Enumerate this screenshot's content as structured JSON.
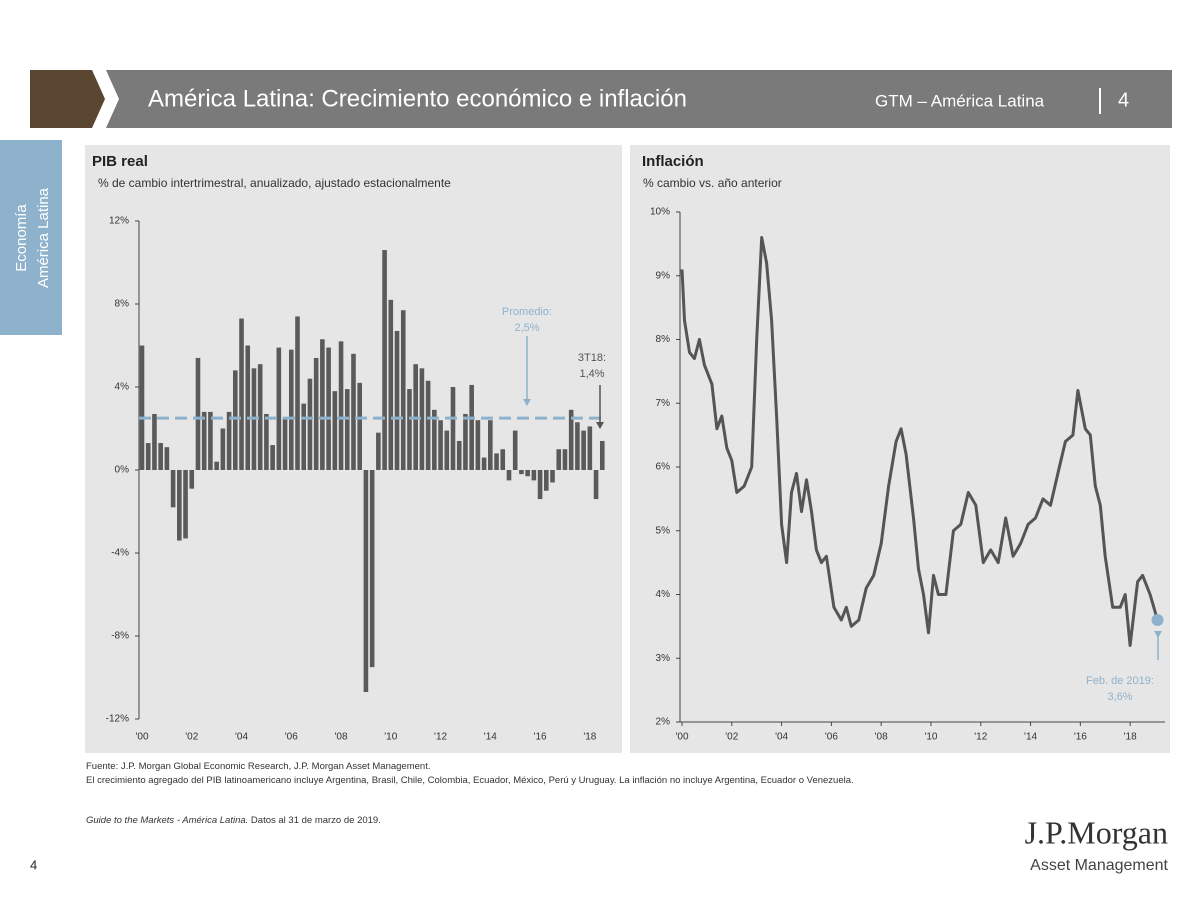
{
  "header": {
    "title": "América Latina: Crecimiento económico e inflación",
    "subtitle": "GTM – América Latina",
    "page": "4"
  },
  "sidebar": [
    "Economía",
    "América Latina"
  ],
  "chart_data": [
    {
      "type": "bar",
      "title": "PIB real",
      "subtitle": "% de cambio intertrimestral, anualizado, ajustado estacionalmente",
      "categories": [
        "'00",
        null,
        null,
        null,
        null,
        null,
        null,
        null,
        "'02",
        null,
        null,
        null,
        null,
        null,
        null,
        null,
        "'04",
        null,
        null,
        null,
        null,
        null,
        null,
        null,
        "'06",
        null,
        null,
        null,
        null,
        null,
        null,
        null,
        "'08",
        null,
        null,
        null,
        null,
        null,
        null,
        null,
        "'10",
        null,
        null,
        null,
        null,
        null,
        null,
        null,
        "'12",
        null,
        null,
        null,
        null,
        null,
        null,
        null,
        "'14",
        null,
        null,
        null,
        null,
        null,
        null,
        null,
        "'16",
        null,
        null,
        null,
        null,
        null,
        null,
        null,
        "'18",
        null,
        null
      ],
      "values": [
        6.0,
        1.3,
        2.7,
        1.3,
        1.1,
        -1.8,
        -3.4,
        -3.3,
        -0.9,
        5.4,
        2.8,
        2.8,
        0.4,
        2.0,
        2.8,
        4.8,
        7.3,
        6.0,
        4.9,
        5.1,
        2.7,
        1.2,
        5.9,
        2.5,
        5.8,
        7.4,
        3.2,
        4.4,
        5.4,
        6.3,
        5.9,
        3.8,
        6.2,
        3.9,
        5.6,
        4.2,
        -10.7,
        -9.5,
        1.8,
        10.6,
        8.2,
        6.7,
        7.7,
        3.9,
        5.1,
        4.9,
        4.3,
        2.9,
        2.4,
        1.9,
        4.0,
        1.4,
        2.7,
        4.1,
        2.4,
        0.6,
        2.4,
        0.8,
        1.0,
        -0.5,
        1.9,
        -0.2,
        -0.3,
        -0.5,
        -1.4,
        -1.0,
        -0.6,
        1.0,
        1.0,
        2.9,
        2.3,
        1.9,
        2.1,
        -1.4,
        1.4
      ],
      "color": "#5a5a5a",
      "ylim": [
        -12,
        12
      ],
      "yticks": [
        {
          "value": -12,
          "label": "-12%"
        },
        {
          "value": -8,
          "label": "-8%"
        },
        {
          "value": -4,
          "label": "-4%"
        },
        {
          "value": 0,
          "label": "0%"
        },
        {
          "value": 4,
          "label": "4%"
        },
        {
          "value": 8,
          "label": "8%"
        },
        {
          "value": 12,
          "label": "12%"
        }
      ],
      "reference_line": {
        "value": 2.5,
        "color": "#8fb2cc"
      },
      "annotations": [
        {
          "lines": [
            "Promedio:",
            "2,5%"
          ],
          "color": "#8fb2cc"
        },
        {
          "lines": [
            "3T18:",
            "1,4%"
          ],
          "color": "#555555"
        }
      ]
    },
    {
      "type": "line",
      "title": "Inflación",
      "subtitle": "% cambio vs. año anterior",
      "x": [
        2000.0,
        2000.1,
        2000.3,
        2000.5,
        2000.7,
        2000.9,
        2001.2,
        2001.4,
        2001.6,
        2001.8,
        2002.0,
        2002.2,
        2002.5,
        2002.8,
        2003.0,
        2003.2,
        2003.4,
        2003.6,
        2003.8,
        2004.0,
        2004.2,
        2004.4,
        2004.6,
        2004.8,
        2005.0,
        2005.2,
        2005.4,
        2005.6,
        2005.8,
        2006.1,
        2006.4,
        2006.6,
        2006.8,
        2007.1,
        2007.4,
        2007.7,
        2008.0,
        2008.3,
        2008.6,
        2008.8,
        2009.0,
        2009.3,
        2009.5,
        2009.7,
        2009.9,
        2010.1,
        2010.3,
        2010.6,
        2010.9,
        2011.2,
        2011.5,
        2011.8,
        2012.1,
        2012.4,
        2012.7,
        2013.0,
        2013.3,
        2013.6,
        2013.9,
        2014.2,
        2014.5,
        2014.8,
        2015.1,
        2015.4,
        2015.7,
        2015.9,
        2016.2,
        2016.4,
        2016.6,
        2016.8,
        2017.0,
        2017.3,
        2017.6,
        2017.8,
        2018.0,
        2018.3,
        2018.5,
        2018.8,
        2019.1
      ],
      "values": [
        9.1,
        8.3,
        7.8,
        7.7,
        8.0,
        7.6,
        7.3,
        6.6,
        6.8,
        6.3,
        6.1,
        5.6,
        5.7,
        6.0,
        8.0,
        9.6,
        9.2,
        8.3,
        6.8,
        5.1,
        4.5,
        5.6,
        5.9,
        5.3,
        5.8,
        5.3,
        4.7,
        4.5,
        4.6,
        3.8,
        3.6,
        3.8,
        3.5,
        3.6,
        4.1,
        4.3,
        4.8,
        5.7,
        6.4,
        6.6,
        6.2,
        5.2,
        4.4,
        4.0,
        3.4,
        4.3,
        4.0,
        4.0,
        5.0,
        5.1,
        5.6,
        5.4,
        4.5,
        4.7,
        4.5,
        5.2,
        4.6,
        4.8,
        5.1,
        5.2,
        5.5,
        5.4,
        5.9,
        6.4,
        6.5,
        7.2,
        6.6,
        6.5,
        5.7,
        5.4,
        4.6,
        3.8,
        3.8,
        4.0,
        3.2,
        4.2,
        4.3,
        4.0,
        3.6
      ],
      "color": "#555555",
      "marker_color": "#8fb2cc",
      "xlim": [
        2000,
        2019.4
      ],
      "xticks": [
        {
          "value": 2000,
          "label": "'00"
        },
        {
          "value": 2002,
          "label": "'02"
        },
        {
          "value": 2004,
          "label": "'04"
        },
        {
          "value": 2006,
          "label": "'06"
        },
        {
          "value": 2008,
          "label": "'08"
        },
        {
          "value": 2010,
          "label": "'10"
        },
        {
          "value": 2012,
          "label": "'12"
        },
        {
          "value": 2014,
          "label": "'14"
        },
        {
          "value": 2016,
          "label": "'16"
        },
        {
          "value": 2018,
          "label": "'18"
        }
      ],
      "ylim": [
        2,
        10
      ],
      "yticks": [
        {
          "value": 2,
          "label": "2%"
        },
        {
          "value": 3,
          "label": "3%"
        },
        {
          "value": 4,
          "label": "4%"
        },
        {
          "value": 5,
          "label": "5%"
        },
        {
          "value": 6,
          "label": "6%"
        },
        {
          "value": 7,
          "label": "7%"
        },
        {
          "value": 8,
          "label": "8%"
        },
        {
          "value": 9,
          "label": "9%"
        },
        {
          "value": 10,
          "label": "10%"
        }
      ],
      "annotations": [
        {
          "lines": [
            "Feb. de 2019:",
            "3,6%"
          ],
          "color": "#8fb2cc"
        }
      ]
    }
  ],
  "footer": {
    "notes": [
      "Fuente: J.P. Morgan Global Economic Research, J.P. Morgan Asset Management.",
      "El crecimiento agregado del PIB latinoamericano incluye Argentina, Brasil, Chile, Colombia, Ecuador, México, Perú y Uruguay. La inflación no incluye Argentina, Ecuador o Venezuela."
    ],
    "guide": "Guide to the Markets - América Latina.",
    "date": "Datos al 31 de marzo de 2019.",
    "logo": "J.P.Morgan",
    "logo_sub": "Asset Management",
    "page": "4"
  }
}
